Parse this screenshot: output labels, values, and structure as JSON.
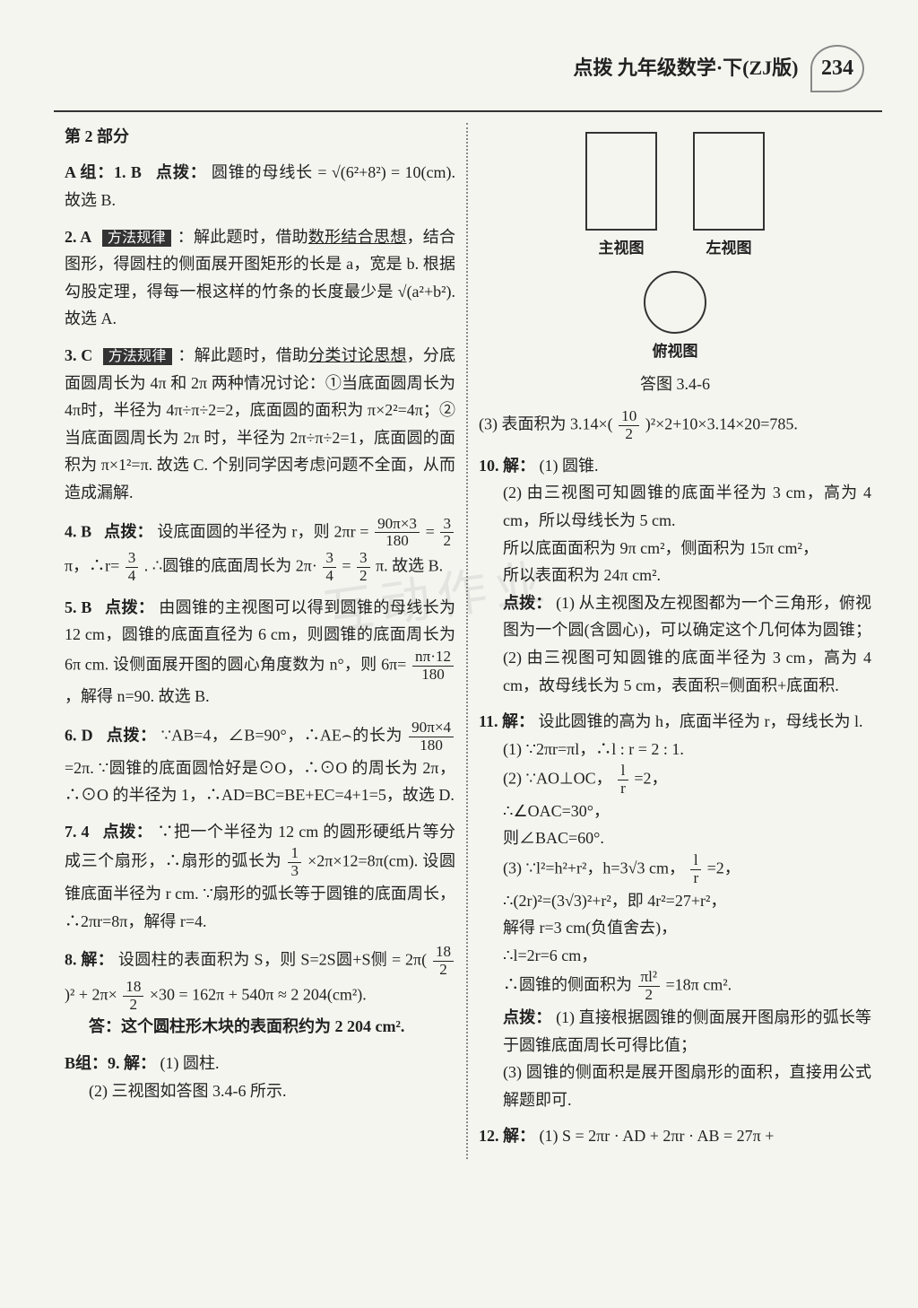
{
  "header": {
    "title": "点拨 九年级数学·下(ZJ版)",
    "page_num": "234"
  },
  "left": {
    "section_hdr": "第 2 部分",
    "q1": {
      "label": "A 组：1. B",
      "hint": "点拨：",
      "text1": "圆锥的母线长 = √(6²+8²) = 10(cm). 故选 B."
    },
    "q2": {
      "label": "2. A",
      "box": "方法规律",
      "text": "：解此题时，借助",
      "ul": "数形结合思想",
      "text2": "，结合图形，得圆柱的侧面展开图矩形的长是 a，宽是 b. 根据勾股定理，得每一根这样的竹条的长度最少是 √(a²+b²). 故选 A."
    },
    "q3": {
      "label": "3. C",
      "box": "方法规律",
      "text": "：解此题时，借助",
      "ul": "分类讨论思想",
      "text2": "，分底面圆周长为 4π 和 2π 两种情况讨论：①当底面圆周长为 4π时，半径为 4π÷π÷2=2，底面圆的面积为 π×2²=4π；②当底面圆周长为 2π 时，半径为 2π÷π÷2=1，底面圆的面积为 π×1²=π. 故选 C. 个别同学因考虑问题不全面，从而造成漏解."
    },
    "q4": {
      "label": "4. B",
      "hint": "点拨：",
      "text": "设底面圆的半径为 r，则 2πr =",
      "frac1_num": "90π×3",
      "frac1_den": "180",
      "text2": "=",
      "frac2_num": "3",
      "frac2_den": "2",
      "text3": "π，∴r=",
      "frac3_num": "3",
      "frac3_den": "4",
      "text4": ". ∴圆锥的底面周长为 2π·",
      "frac4_num": "3",
      "frac4_den": "4",
      "text5": "=",
      "frac5_num": "3",
      "frac5_den": "2",
      "text6": "π. 故选 B."
    },
    "q5": {
      "label": "5. B",
      "hint": "点拨：",
      "text": "由圆锥的主视图可以得到圆锥的母线长为 12 cm，圆锥的底面直径为 6 cm，则圆锥的底面周长为 6π cm. 设侧面展开图的圆心角度数为 n°，则 6π=",
      "frac_num": "nπ·12",
      "frac_den": "180",
      "text2": "，解得 n=90. 故选 B."
    },
    "q6": {
      "label": "6. D",
      "hint": "点拨：",
      "text": "∵AB=4，∠B=90°，∴AE⌢的长为",
      "frac_num": "90π×4",
      "frac_den": "180",
      "text2": "=2π. ∵圆锥的底面圆恰好是⊙O，∴⊙O 的周长为 2π，∴⊙O 的半径为 1，∴AD=BC=BE+EC=4+1=5，故选 D."
    },
    "q7": {
      "label": "7. 4",
      "hint": "点拨：",
      "text": "∵把一个半径为 12 cm 的圆形硬纸片等分成三个扇形，∴扇形的弧长为",
      "frac_num": "1",
      "frac_den": "3",
      "text2": "×2π×12=8π(cm). 设圆锥底面半径为 r cm. ∵扇形的弧长等于圆锥的底面周长，∴2πr=8π，解得 r=4."
    },
    "q8": {
      "label": "8. 解：",
      "text": "设圆柱的表面积为 S，则 S=2S圆+S侧 = 2π(",
      "frac_num": "18",
      "frac_den": "2",
      "text2": ")² + 2π×",
      "frac2_num": "18",
      "frac2_den": "2",
      "text3": "×30 = 162π + 540π ≈ 2 204(cm²).",
      "ans": "答：这个圆柱形木块的表面积约为 2 204 cm²."
    },
    "q9": {
      "label": "B组：9. 解：",
      "text1": "(1) 圆柱.",
      "text2": "(2) 三视图如答图 3.4-6 所示."
    }
  },
  "right": {
    "fig": {
      "main": "主视图",
      "left": "左视图",
      "top": "俯视图",
      "caption": "答图 3.4-6"
    },
    "q9_3": {
      "text1": "(3) 表面积为 3.14×(",
      "frac_num": "10",
      "frac_den": "2",
      "text2": ")²×2+10×3.14×20=785."
    },
    "q10": {
      "label": "10. 解：",
      "p1": "(1) 圆锥.",
      "p2": "(2) 由三视图可知圆锥的底面半径为 3 cm，高为 4 cm，所以母线长为 5 cm.",
      "p3": "所以底面面积为 9π cm²，侧面积为 15π cm²，",
      "p4": "所以表面积为 24π cm².",
      "hint": "点拨：",
      "p5": "(1) 从主视图及左视图都为一个三角形，俯视图为一个圆(含圆心)，可以确定这个几何体为圆锥；(2) 由三视图可知圆锥的底面半径为 3 cm，高为 4 cm，故母线长为 5 cm，表面积=侧面积+底面积."
    },
    "q11": {
      "label": "11. 解：",
      "intro": "设此圆锥的高为 h，底面半径为 r，母线长为 l.",
      "p1": "(1) ∵2πr=πl，∴l : r = 2 : 1.",
      "p2a": "(2) ∵AO⊥OC，",
      "p2frac_num": "l",
      "p2frac_den": "r",
      "p2b": "=2，",
      "p3": "∴∠OAC=30°，",
      "p4": "则∠BAC=60°.",
      "p5a": "(3) ∵l²=h²+r²，h=3√3 cm，",
      "p5frac_num": "l",
      "p5frac_den": "r",
      "p5b": "=2，",
      "p6": "∴(2r)²=(3√3)²+r²，即 4r²=27+r²，",
      "p7": "解得 r=3 cm(负值舍去)，",
      "p8": "∴l=2r=6 cm，",
      "p9a": "∴圆锥的侧面积为",
      "p9frac_num": "πl²",
      "p9frac_den": "2",
      "p9b": "=18π cm².",
      "hint": "点拨：",
      "p10": "(1) 直接根据圆锥的侧面展开图扇形的弧长等于圆锥底面周长可得比值；",
      "p11": "(3) 圆锥的侧面积是展开图扇形的面积，直接用公式解题即可."
    },
    "q12": {
      "label": "12. 解：",
      "text": "(1) S = 2πr · AD + 2πr · AB = 27π +"
    }
  },
  "watermark": "互动作业"
}
